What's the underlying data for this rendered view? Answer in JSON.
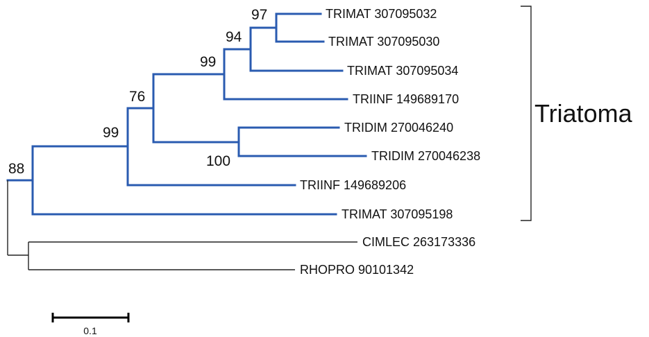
{
  "tree": {
    "taxa": [
      "TRIMAT 307095032",
      "TRIMAT 307095030",
      "TRIMAT 307095034",
      "TRIINF 149689170",
      "TRIDIM 270046240",
      "TRIDIM 270046238",
      "TRIINF 149689206",
      "TRIMAT 307095198",
      "CIMLEC 263173336",
      "RHOPRO 90101342"
    ],
    "support_values": [
      "97",
      "94",
      "99",
      "76",
      "99",
      "100",
      "88"
    ],
    "clade_label": "Triatoma",
    "highlight_color": "#2a5bb0",
    "scale": {
      "value": 0.1,
      "label": "0.1"
    }
  }
}
